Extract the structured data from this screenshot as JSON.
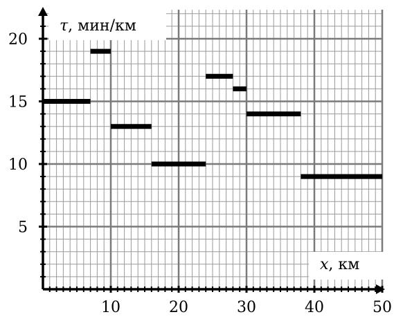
{
  "chart_data": {
    "type": "step",
    "x_axis": {
      "variable": "x",
      "unit": "км",
      "range": [
        0,
        50
      ],
      "ticks": [
        "10",
        "20",
        "30",
        "40",
        "50"
      ],
      "tick_values": [
        10,
        20,
        30,
        40,
        50
      ]
    },
    "y_axis": {
      "variable": "τ",
      "unit": "мин/км",
      "range": [
        0,
        22
      ],
      "ticks": [
        "5",
        "10",
        "15",
        "20"
      ],
      "tick_values": [
        5,
        10,
        15,
        20
      ]
    },
    "grid": true,
    "segments": [
      {
        "x_start": 0,
        "x_end": 7,
        "y": 15
      },
      {
        "x_start": 7,
        "x_end": 10,
        "y": 19
      },
      {
        "x_start": 10,
        "x_end": 16,
        "y": 13
      },
      {
        "x_start": 16,
        "x_end": 24,
        "y": 10
      },
      {
        "x_start": 24,
        "x_end": 28,
        "y": 17
      },
      {
        "x_start": 28,
        "x_end": 30,
        "y": 16
      },
      {
        "x_start": 30,
        "x_end": 38,
        "y": 14
      },
      {
        "x_start": 38,
        "x_end": 50,
        "y": 9
      }
    ]
  },
  "labels": {
    "y_var": "τ",
    "y_unit": ", мин/км",
    "x_var": "x",
    "x_unit": ", км"
  }
}
